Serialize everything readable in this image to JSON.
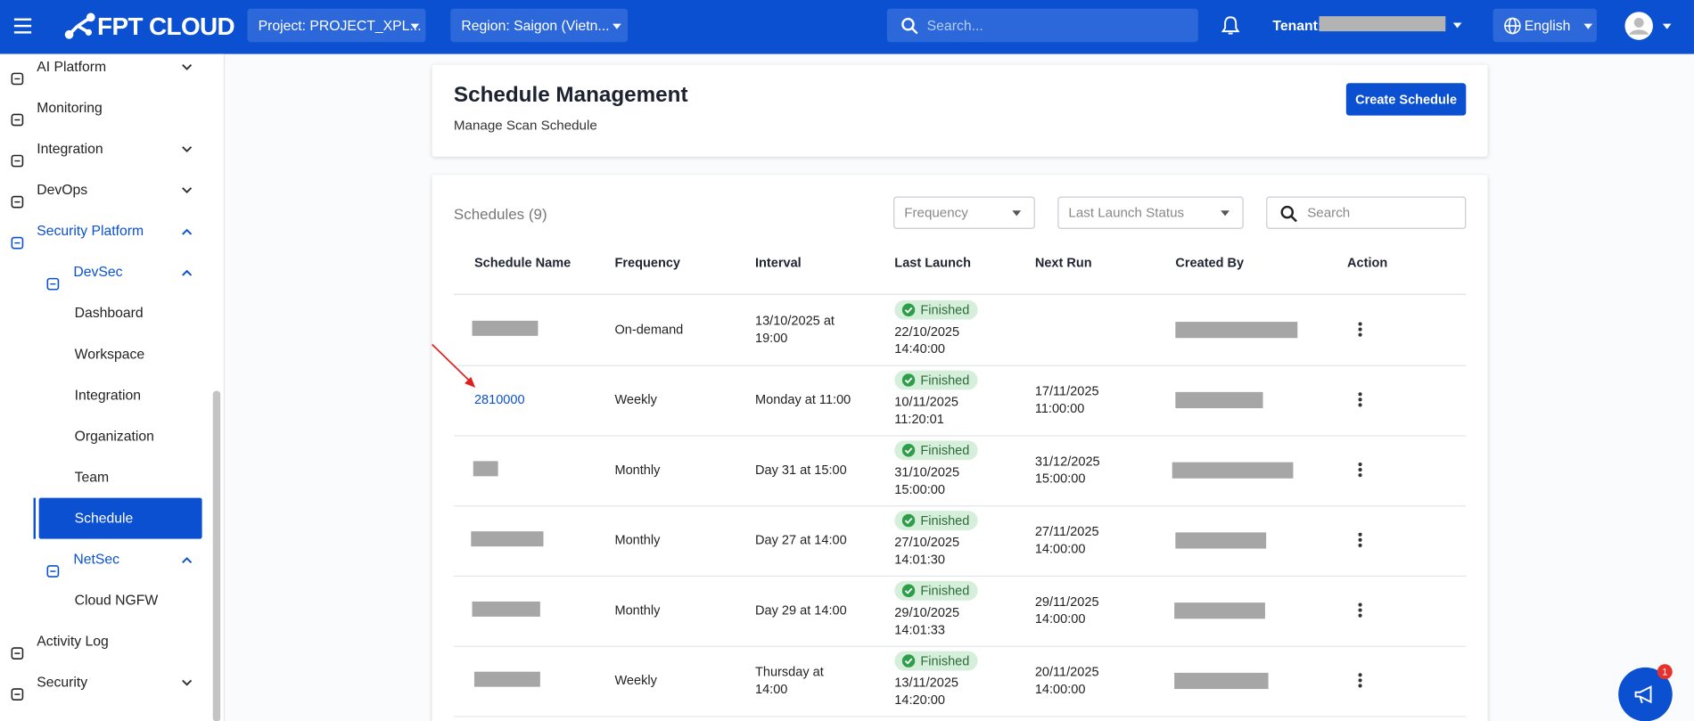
{
  "header": {
    "brand": "FPT CLOUD",
    "project": "Project: PROJECT_XPL...",
    "region": "Region: Saigon (Vietn...",
    "search_placeholder": "Search...",
    "tenant_label": "Tenant:",
    "language": "English"
  },
  "sidebar": {
    "items": [
      {
        "label": "AI Platform"
      },
      {
        "label": "Monitoring"
      },
      {
        "label": "Integration"
      },
      {
        "label": "DevOps"
      },
      {
        "label": "Security Platform"
      },
      {
        "label": "DevSec"
      },
      {
        "label": "Dashboard"
      },
      {
        "label": "Workspace"
      },
      {
        "label": "Integration"
      },
      {
        "label": "Organization"
      },
      {
        "label": "Team"
      },
      {
        "label": "Schedule",
        "selected": true
      },
      {
        "label": "NetSec"
      },
      {
        "label": "Cloud NGFW"
      },
      {
        "label": "Activity Log"
      },
      {
        "label": "Security"
      }
    ]
  },
  "page": {
    "title": "Schedule Management",
    "subtitle": "Manage Scan Schedule",
    "create_button": "Create Schedule"
  },
  "table": {
    "title": "Schedules (9)",
    "filters": [
      "Frequency",
      "Last Launch Status"
    ],
    "search_placeholder": "Search",
    "columns": [
      "Schedule Name",
      "Frequency",
      "Interval",
      "Last Launch",
      "Next Run",
      "Created By",
      "Action"
    ],
    "rows": [
      {
        "frequency": "On-demand",
        "interval": "13/10/2025 at 19:00",
        "status": "Finished",
        "last_launch": "22/10/2025 14:40:00"
      },
      {
        "name": "2810000",
        "frequency": "Weekly",
        "interval": "Monday at 11:00",
        "status": "Finished",
        "last_launch": "10/11/2025 11:20:01",
        "next_run": "17/11/2025 11:00:00"
      },
      {
        "frequency": "Monthly",
        "interval": "Day 31 at 15:00",
        "status": "Finished",
        "last_launch": "31/10/2025 15:00:00",
        "next_run": "31/12/2025 15:00:00"
      },
      {
        "frequency": "Monthly",
        "interval": "Day 27 at 14:00",
        "status": "Finished",
        "last_launch": "27/10/2025 14:01:30",
        "next_run": "27/11/2025 14:00:00"
      },
      {
        "frequency": "Monthly",
        "interval": "Day 29 at 14:00",
        "status": "Finished",
        "last_launch": "29/10/2025 14:01:33",
        "next_run": "29/11/2025 14:00:00"
      },
      {
        "frequency": "Weekly",
        "interval": "Thursday at 14:00",
        "status": "Finished",
        "last_launch": "13/11/2025 14:20:00",
        "next_run": "20/11/2025 14:00:00"
      }
    ]
  },
  "notification_count": 1
}
